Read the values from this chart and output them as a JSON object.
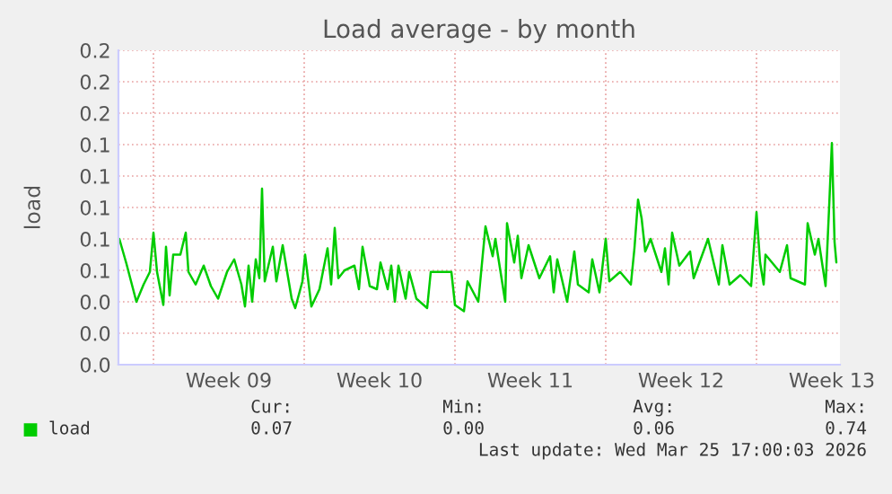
{
  "chart_data": {
    "type": "line",
    "title": "Load average - by month",
    "ylabel": "load",
    "x": [
      "2026-02-21T10:00",
      "2026-02-21T18:00",
      "2026-02-22T05:00",
      "2026-02-22T13:00",
      "2026-02-22T20:00",
      "2026-02-23T00:00",
      "2026-02-23T04:00",
      "2026-02-23T11:00",
      "2026-02-23T14:00",
      "2026-02-23T18:00",
      "2026-02-23T22:00",
      "2026-02-24T06:00",
      "2026-02-24T12:00",
      "2026-02-24T15:00",
      "2026-02-24T23:00",
      "2026-02-25T08:00",
      "2026-02-25T16:00",
      "2026-02-26T00:00",
      "2026-02-26T10:00",
      "2026-02-26T18:00",
      "2026-02-27T02:00",
      "2026-02-27T06:00",
      "2026-02-27T10:00",
      "2026-02-27T14:00",
      "2026-02-27T18:00",
      "2026-02-27T22:00",
      "2026-02-28T01:00",
      "2026-02-28T04:00",
      "2026-02-28T13:00",
      "2026-02-28T17:00",
      "2026-03-01T00:00",
      "2026-03-01T10:00",
      "2026-03-01T14:00",
      "2026-03-01T22:00",
      "2026-03-02T01:00",
      "2026-03-02T08:00",
      "2026-03-02T17:00",
      "2026-03-03T02:00",
      "2026-03-03T06:00",
      "2026-03-03T10:00",
      "2026-03-03T14:00",
      "2026-03-03T21:00",
      "2026-03-04T08:00",
      "2026-03-04T13:00",
      "2026-03-04T17:00",
      "2026-03-05T01:00",
      "2026-03-05T09:00",
      "2026-03-05T13:00",
      "2026-03-05T21:00",
      "2026-03-06T01:00",
      "2026-03-06T05:00",
      "2026-03-06T09:00",
      "2026-03-06T17:00",
      "2026-03-06T21:00",
      "2026-03-07T05:00",
      "2026-03-07T17:00",
      "2026-03-07T21:00",
      "2026-03-08T20:00",
      "2026-03-09T00:00",
      "2026-03-09T10:00",
      "2026-03-09T14:00",
      "2026-03-10T02:00",
      "2026-03-10T10:00",
      "2026-03-10T18:00",
      "2026-03-10T21:00",
      "2026-03-11T08:00",
      "2026-03-11T10:00",
      "2026-03-11T18:00",
      "2026-03-11T22:00",
      "2026-03-12T02:00",
      "2026-03-12T10:00",
      "2026-03-12T22:00",
      "2026-03-13T10:00",
      "2026-03-13T14:00",
      "2026-03-13T18:00",
      "2026-03-14T05:00",
      "2026-03-14T13:00",
      "2026-03-14T17:00",
      "2026-03-15T05:00",
      "2026-03-15T09:00",
      "2026-03-15T17:00",
      "2026-03-16T00:00",
      "2026-03-16T04:00",
      "2026-03-16T16:00",
      "2026-03-17T04:00",
      "2026-03-17T08:00",
      "2026-03-17T12:00",
      "2026-03-17T16:00",
      "2026-03-17T20:00",
      "2026-03-18T02:00",
      "2026-03-18T14:00",
      "2026-03-18T18:00",
      "2026-03-18T22:00",
      "2026-03-19T02:00",
      "2026-03-19T10:00",
      "2026-03-19T22:00",
      "2026-03-20T02:00",
      "2026-03-20T18:00",
      "2026-03-21T06:00",
      "2026-03-21T10:00",
      "2026-03-21T18:00",
      "2026-03-22T06:00",
      "2026-03-22T18:00",
      "2026-03-23T00:00",
      "2026-03-23T04:00",
      "2026-03-23T08:00",
      "2026-03-23T10:00",
      "2026-03-24T02:00",
      "2026-03-24T10:00",
      "2026-03-24T14:00",
      "2026-03-25T06:00",
      "2026-03-25T09:00",
      "2026-03-25T17:00",
      "2026-03-25T21:00",
      "2026-03-26T05:00",
      "2026-03-26T09:00",
      "2026-03-26T12:00",
      "2026-03-26T15:00",
      "2026-03-26T17:00"
    ],
    "series": [
      {
        "name": "load",
        "color": "#00cc00",
        "values": [
          0.08,
          0.064,
          0.04,
          0.051,
          0.059,
          0.084,
          0.059,
          0.038,
          0.075,
          0.044,
          0.07,
          0.07,
          0.084,
          0.059,
          0.051,
          0.063,
          0.05,
          0.042,
          0.059,
          0.067,
          0.051,
          0.037,
          0.063,
          0.04,
          0.067,
          0.055,
          0.112,
          0.053,
          0.075,
          0.053,
          0.076,
          0.042,
          0.036,
          0.053,
          0.07,
          0.037,
          0.048,
          0.074,
          0.051,
          0.087,
          0.055,
          0.06,
          0.063,
          0.048,
          0.075,
          0.05,
          0.048,
          0.065,
          0.048,
          0.063,
          0.04,
          0.063,
          0.042,
          0.059,
          0.042,
          0.036,
          0.059,
          0.059,
          0.038,
          0.034,
          0.053,
          0.04,
          0.088,
          0.069,
          0.08,
          0.04,
          0.09,
          0.065,
          0.082,
          0.055,
          0.076,
          0.055,
          0.069,
          0.046,
          0.067,
          0.04,
          0.072,
          0.051,
          0.046,
          0.067,
          0.046,
          0.08,
          0.053,
          0.059,
          0.051,
          0.074,
          0.105,
          0.093,
          0.072,
          0.08,
          0.059,
          0.074,
          0.051,
          0.084,
          0.063,
          0.072,
          0.055,
          0.08,
          0.051,
          0.076,
          0.051,
          0.057,
          0.05,
          0.097,
          0.065,
          0.051,
          0.07,
          0.059,
          0.076,
          0.055,
          0.051,
          0.09,
          0.07,
          0.08,
          0.05,
          0.101,
          0.141,
          0.078,
          0.065
        ]
      }
    ],
    "xlim": [
      "2026-02-21T09:00",
      "2026-03-26T21:00"
    ],
    "xticks": [
      {
        "value": "2026-02-23",
        "label": null
      },
      {
        "value": "2026-03-02",
        "label": null
      },
      {
        "value": "2026-03-09",
        "label": null
      },
      {
        "value": "2026-03-16",
        "label": null
      },
      {
        "value": "2026-03-23",
        "label": null
      },
      {
        "value": "2026-02-26T12:00",
        "label": "Week 09"
      },
      {
        "value": "2026-03-05T12:00",
        "label": "Week 10"
      },
      {
        "value": "2026-03-12T12:00",
        "label": "Week 11"
      },
      {
        "value": "2026-03-19T12:00",
        "label": "Week 12"
      },
      {
        "value": "2026-03-26T12:00",
        "label": "Week 13"
      }
    ],
    "ylim": [
      0,
      0.2
    ],
    "yticks": [
      {
        "value": 0,
        "label": "0.0"
      },
      {
        "value": 0.02,
        "label": "0.0"
      },
      {
        "value": 0.04,
        "label": "0.0"
      },
      {
        "value": 0.06,
        "label": "0.1"
      },
      {
        "value": 0.08,
        "label": "0.1"
      },
      {
        "value": 0.1,
        "label": "0.1"
      },
      {
        "value": 0.12,
        "label": "0.1"
      },
      {
        "value": 0.14,
        "label": "0.1"
      },
      {
        "value": 0.16,
        "label": "0.2"
      },
      {
        "value": 0.18,
        "label": "0.2"
      },
      {
        "value": 0.2,
        "label": "0.2"
      }
    ],
    "grid": true,
    "legend": "bottom left",
    "marker": "none",
    "line_style": "solid",
    "annotations": [
      "Cur:",
      "0.07",
      "Min:",
      "0.00",
      "Avg:",
      "0.06",
      "Max:",
      "0.74",
      "Last update: Wed Mar 25 17:00:03 2026"
    ]
  }
}
